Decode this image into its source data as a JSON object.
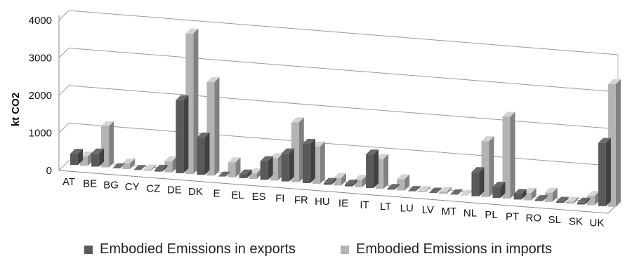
{
  "chart_data": {
    "type": "bar",
    "style": "3d-clustered-column",
    "ylabel": "kt CO2",
    "ylim": [
      0,
      4000
    ],
    "yticks": [
      "0",
      "1000",
      "2000",
      "3000",
      "4000"
    ],
    "categories": [
      "AT",
      "BE",
      "BG",
      "CY",
      "CZ",
      "DE",
      "DK",
      "E",
      "EL",
      "ES",
      "FI",
      "FR",
      "HU",
      "IE",
      "IT",
      "LT",
      "LU",
      "LV",
      "MT",
      "NL",
      "PL",
      "PT",
      "RO",
      "SL",
      "SK",
      "UK"
    ],
    "series": [
      {
        "name": "Embodied Emissions in exports",
        "color": "#5a5a5a",
        "values": [
          300,
          350,
          0,
          0,
          50,
          1950,
          1000,
          0,
          100,
          500,
          750,
          1050,
          50,
          50,
          900,
          20,
          10,
          10,
          10,
          650,
          300,
          150,
          30,
          30,
          50,
          1700
        ]
      },
      {
        "name": "Embodied Emissions in imports",
        "color": "#b3b3b3",
        "values": [
          250,
          1100,
          150,
          30,
          300,
          3750,
          2500,
          400,
          150,
          600,
          1600,
          1000,
          200,
          200,
          800,
          300,
          30,
          50,
          10,
          1500,
          2200,
          200,
          250,
          50,
          250,
          3300
        ]
      }
    ],
    "grid": true,
    "legend_position": "bottom"
  }
}
